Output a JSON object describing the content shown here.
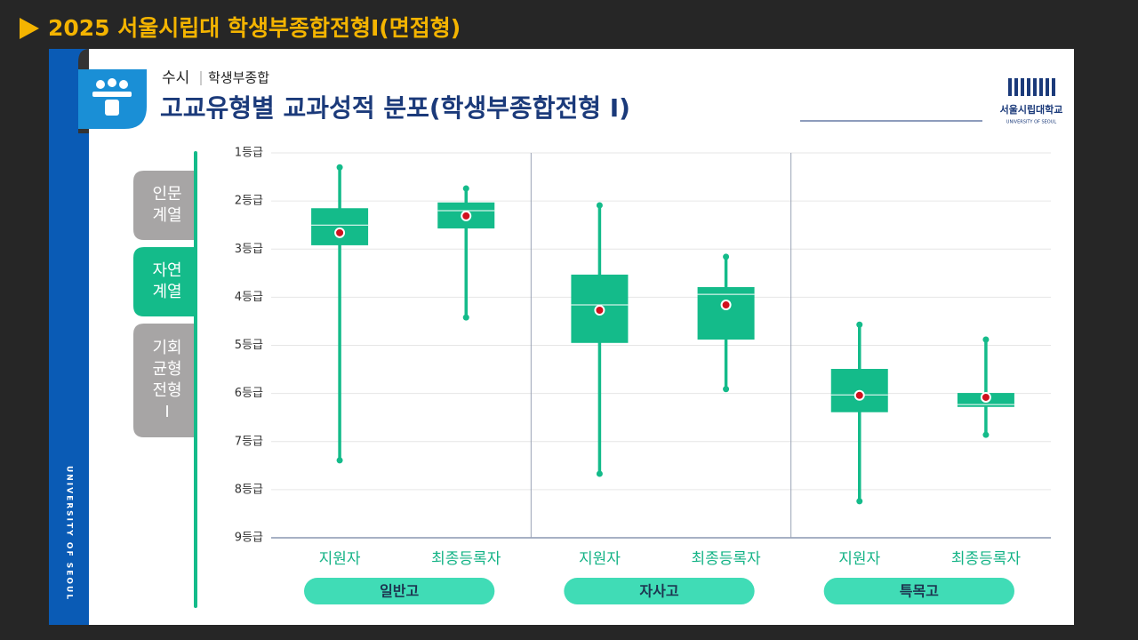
{
  "page_title": "2025 서울시립대 학생부종합전형I(면접형)",
  "header": {
    "category": "수시",
    "subcategory": "학생부종합",
    "title": "고교유형별 교과성적 분포(학생부종합전형 I)"
  },
  "logo": {
    "name": "서울시립대학교",
    "english": "UNIVERSITY OF SEOUL"
  },
  "side_text": "UNIVERSITY OF SEOUL",
  "tabs": [
    [
      "인문",
      "계열"
    ],
    [
      "자연",
      "계열"
    ],
    [
      "기회",
      "균형",
      "전형",
      "I"
    ]
  ],
  "chart_data": {
    "type": "box",
    "ylim": [
      1,
      9
    ],
    "yticks": [
      {
        "value": 1,
        "label": "1등급"
      },
      {
        "value": 2,
        "label": "2등급"
      },
      {
        "value": 3,
        "label": "3등급"
      },
      {
        "value": 4,
        "label": "4등급"
      },
      {
        "value": 5,
        "label": "5등급"
      },
      {
        "value": 6,
        "label": "6등급"
      },
      {
        "value": 7,
        "label": "7등급"
      },
      {
        "value": 8,
        "label": "8등급"
      },
      {
        "value": 9,
        "label": "9등급"
      }
    ],
    "color": "#14bb8a",
    "mean_color": "#d0101e",
    "grid": true,
    "groups": [
      {
        "name": "일반고",
        "boxes": [
          {
            "label": "지원자",
            "min": 1.3,
            "q1": 2.15,
            "median": 2.5,
            "q3": 2.92,
            "max": 7.39,
            "mean": 2.66
          },
          {
            "label": "최종등록자",
            "min": 1.74,
            "q1": 2.03,
            "median": 2.2,
            "q3": 2.57,
            "max": 4.42,
            "mean": 2.31
          }
        ]
      },
      {
        "name": "자사고",
        "boxes": [
          {
            "label": "지원자",
            "min": 2.09,
            "q1": 3.53,
            "median": 4.16,
            "q3": 4.95,
            "max": 7.67,
            "mean": 4.27
          },
          {
            "label": "최종등록자",
            "min": 3.16,
            "q1": 3.79,
            "median": 3.94,
            "q3": 4.88,
            "max": 5.91,
            "mean": 4.16
          }
        ]
      },
      {
        "name": "특목고",
        "boxes": [
          {
            "label": "지원자",
            "min": 4.57,
            "q1": 5.49,
            "median": 6.03,
            "q3": 6.39,
            "max": 8.24,
            "mean": 6.04
          },
          {
            "label": "최종등록자",
            "min": 4.88,
            "q1": 5.99,
            "median": 6.23,
            "q3": 6.28,
            "max": 6.86,
            "mean": 6.08
          }
        ]
      }
    ]
  }
}
